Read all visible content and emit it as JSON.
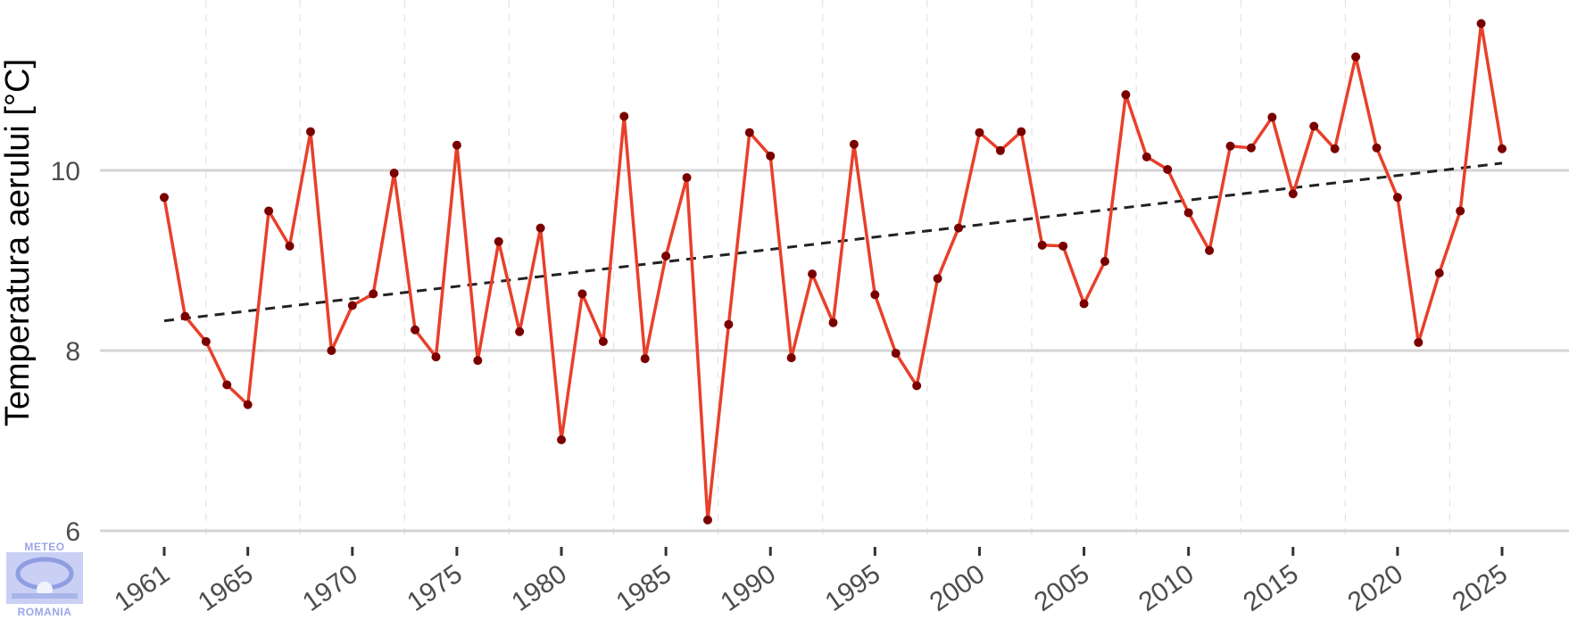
{
  "chart_data": {
    "type": "line",
    "title": "",
    "xlabel": "",
    "ylabel": "Temperatura aerului [°C]",
    "xlim": [
      1961,
      2025
    ],
    "ylim": [
      6,
      10
    ],
    "x_ticks": [
      1961,
      1965,
      1970,
      1975,
      1980,
      1985,
      1990,
      1995,
      2000,
      2005,
      2010,
      2015,
      2020,
      2025
    ],
    "y_ticks": [
      6,
      8,
      10
    ],
    "grid": "horizontal major solid, vertical minor dashed",
    "legend": "none",
    "series": [
      {
        "kind": "observed",
        "color": "#e8402b",
        "marker_color": "#7a0000",
        "x": [
          1961,
          1962,
          1963,
          1964,
          1965,
          1966,
          1967,
          1968,
          1969,
          1970,
          1971,
          1972,
          1973,
          1974,
          1975,
          1976,
          1977,
          1978,
          1979,
          1980,
          1981,
          1982,
          1983,
          1984,
          1985,
          1986,
          1987,
          1988,
          1989,
          1990,
          1991,
          1992,
          1993,
          1994,
          1995,
          1996,
          1997,
          1998,
          1999,
          2000,
          2001,
          2002,
          2003,
          2004,
          2005,
          2006,
          2007,
          2008,
          2009,
          2010,
          2011,
          2012,
          2013,
          2014,
          2015,
          2016,
          2017,
          2018,
          2019,
          2020,
          2021,
          2022,
          2023,
          2024,
          2025
        ],
        "y": [
          9.7,
          8.38,
          8.1,
          7.62,
          7.4,
          9.55,
          9.16,
          10.43,
          8.0,
          8.5,
          8.63,
          9.97,
          8.23,
          7.93,
          10.28,
          7.89,
          9.21,
          8.21,
          9.36,
          7.01,
          8.63,
          8.1,
          10.6,
          7.91,
          9.05,
          9.92,
          6.12,
          8.29,
          10.42,
          10.16,
          7.92,
          8.85,
          8.31,
          10.29,
          8.62,
          7.97,
          7.61,
          8.8,
          9.36,
          10.42,
          10.22,
          10.43,
          9.17,
          9.16,
          8.52,
          8.99,
          10.84,
          10.15,
          10.01,
          9.53,
          9.11,
          10.27,
          10.25,
          10.59,
          9.74,
          10.49,
          10.24,
          11.26,
          10.25,
          9.7,
          8.09,
          8.86,
          9.55,
          11.63,
          10.24
        ]
      },
      {
        "kind": "trend",
        "style": "dashed",
        "color": "#222222",
        "x": [
          1961,
          2025
        ],
        "y": [
          8.33,
          10.08
        ]
      }
    ]
  },
  "logo": {
    "top_text": "METEO",
    "bottom_text": "ROMANIA",
    "color": "#9aa6e6"
  }
}
